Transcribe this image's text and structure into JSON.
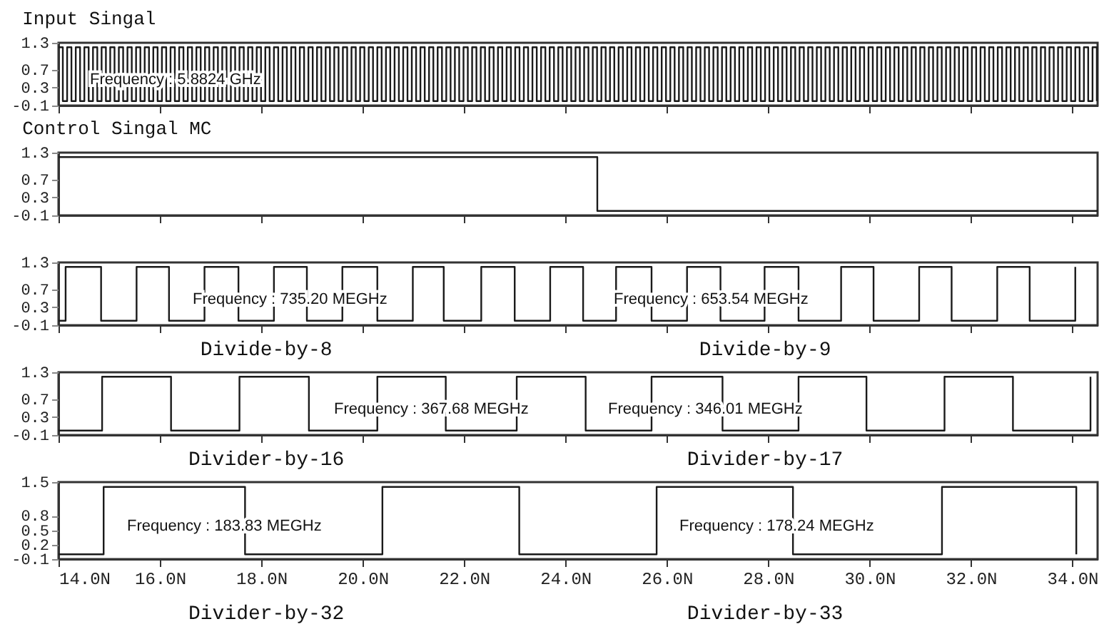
{
  "chart_data": [
    {
      "type": "step",
      "title": "Input Singal",
      "xlim": [
        14,
        34.5
      ],
      "xticks": [
        14,
        16,
        18,
        20,
        22,
        24,
        26,
        28,
        30,
        32,
        34
      ],
      "ylim": [
        -0.1,
        1.3
      ],
      "yticks": [
        -0.1,
        0.3,
        0.7,
        1.3
      ],
      "tick_labels": "y",
      "x": [
        14,
        14.085,
        14.17,
        14.255,
        14.34,
        14.425,
        14.51,
        14.595,
        14.68,
        14.765,
        14.85,
        14.935,
        15.02,
        15.105,
        15.19,
        15.275,
        15.36,
        15.445,
        15.53,
        15.615,
        15.7,
        15.785,
        15.87,
        15.955,
        16.04,
        16.125,
        16.21,
        16.295,
        16.38,
        16.465,
        16.55,
        16.635,
        16.72,
        16.805,
        16.89,
        16.975,
        17.06,
        17.145,
        17.23,
        17.315,
        17.4,
        17.485,
        17.57,
        17.655,
        17.74,
        17.825,
        17.91,
        17.995,
        18.08,
        18.165,
        18.25,
        18.335,
        18.42,
        18.505,
        18.59,
        18.675,
        18.76,
        18.845,
        18.93,
        19.015,
        19.1,
        19.185,
        19.27,
        19.355,
        19.44,
        19.525,
        19.61,
        19.695,
        19.78,
        19.865,
        19.95,
        20.035,
        20.12,
        20.205,
        20.29,
        20.375,
        20.46,
        20.545,
        20.63,
        20.715,
        20.8,
        20.885,
        20.97,
        21.055,
        21.14,
        21.225,
        21.31,
        21.395,
        21.48,
        21.565,
        21.65,
        21.735,
        21.82,
        21.905,
        21.99,
        22.075,
        22.16,
        22.245,
        22.33,
        22.415,
        22.5,
        22.585,
        22.67,
        22.755,
        22.84,
        22.925,
        23.01,
        23.095,
        23.18,
        23.265,
        23.35,
        23.435,
        23.52,
        23.605,
        23.69,
        23.775,
        23.86,
        23.945,
        24.03,
        24.115,
        24.2,
        24.285,
        24.37,
        24.455,
        24.54,
        24.625,
        24.71,
        24.795,
        24.88,
        24.965,
        25.05,
        25.135,
        25.22,
        25.305,
        25.39,
        25.475,
        25.56,
        25.645,
        25.73,
        25.815,
        25.9,
        25.985,
        26.07,
        26.155,
        26.24,
        26.325,
        26.41,
        26.495,
        26.58,
        26.665,
        26.75,
        26.835,
        26.92,
        27.005,
        27.09,
        27.175,
        27.26,
        27.345,
        27.43,
        27.515,
        27.6,
        27.685,
        27.77,
        27.855,
        27.94,
        28.025,
        28.11,
        28.195,
        28.28,
        28.365,
        28.45,
        28.535,
        28.62,
        28.705,
        28.79,
        28.875,
        28.96,
        29.045,
        29.13,
        29.215,
        29.3,
        29.385,
        29.47,
        29.555,
        29.64,
        29.725,
        29.81,
        29.895,
        29.98,
        30.065,
        30.15,
        30.235,
        30.32,
        30.405,
        30.49,
        30.575,
        30.66,
        30.745,
        30.83,
        30.915,
        31,
        31.085,
        31.17,
        31.255,
        31.34,
        31.425,
        31.51,
        31.595,
        31.68,
        31.765,
        31.85,
        31.935,
        32.02,
        32.105,
        32.19,
        32.275,
        32.36,
        32.445,
        32.53,
        32.615,
        32.7,
        32.785,
        32.87,
        32.955,
        33.04,
        33.125,
        33.21,
        33.295,
        33.38,
        33.465,
        33.55,
        33.635,
        33.72,
        33.805,
        33.89,
        33.975,
        34.06,
        34.145,
        34.23,
        34.315,
        34.4,
        34.485
      ],
      "series": [
        {
          "color": "#1a1a1a",
          "values": [
            1.2,
            0,
            1.2,
            0,
            1.2,
            0,
            1.2,
            0,
            1.2,
            0,
            1.2,
            0,
            1.2,
            0,
            1.2,
            0,
            1.2,
            0,
            1.2,
            0,
            1.2,
            0,
            1.2,
            0,
            1.2,
            0,
            1.2,
            0,
            1.2,
            0,
            1.2,
            0,
            1.2,
            0,
            1.2,
            0,
            1.2,
            0,
            1.2,
            0,
            1.2,
            0,
            1.2,
            0,
            1.2,
            0,
            1.2,
            0,
            1.2,
            0,
            1.2,
            0,
            1.2,
            0,
            1.2,
            0,
            1.2,
            0,
            1.2,
            0,
            1.2,
            0,
            1.2,
            0,
            1.2,
            0,
            1.2,
            0,
            1.2,
            0,
            1.2,
            0,
            1.2,
            0,
            1.2,
            0,
            1.2,
            0,
            1.2,
            0,
            1.2,
            0,
            1.2,
            0,
            1.2,
            0,
            1.2,
            0,
            1.2,
            0,
            1.2,
            0,
            1.2,
            0,
            1.2,
            0,
            1.2,
            0,
            1.2,
            0,
            1.2,
            0,
            1.2,
            0,
            1.2,
            0,
            1.2,
            0,
            1.2,
            0,
            1.2,
            0,
            1.2,
            0,
            1.2,
            0,
            1.2,
            0,
            1.2,
            0,
            1.2,
            0,
            1.2,
            0,
            1.2,
            0,
            1.2,
            0,
            1.2,
            0,
            1.2,
            0,
            1.2,
            0,
            1.2,
            0,
            1.2,
            0,
            1.2,
            0,
            1.2,
            0,
            1.2,
            0,
            1.2,
            0,
            1.2,
            0,
            1.2,
            0,
            1.2,
            0,
            1.2,
            0,
            1.2,
            0,
            1.2,
            0,
            1.2,
            0,
            1.2,
            0,
            1.2,
            0,
            1.2,
            0,
            1.2,
            0,
            1.2,
            0,
            1.2,
            0,
            1.2,
            0,
            1.2,
            0,
            1.2,
            0,
            1.2,
            0,
            1.2,
            0,
            1.2,
            0,
            1.2,
            0,
            1.2,
            0,
            1.2,
            0,
            1.2,
            0,
            1.2,
            0,
            1.2,
            0,
            1.2,
            0,
            1.2,
            0,
            1.2,
            0,
            1.2,
            0,
            1.2,
            0,
            1.2,
            0,
            1.2,
            0,
            1.2,
            0,
            1.2,
            0,
            1.2,
            0,
            1.2,
            0,
            1.2,
            0,
            1.2,
            0,
            1.2,
            0,
            1.2,
            0,
            1.2,
            0,
            1.2,
            0,
            1.2,
            0,
            1.2,
            0,
            1.2,
            0,
            1.2,
            0,
            1.2,
            0,
            1.2,
            0
          ]
        }
      ],
      "annotations": [
        "Frequency : 5.8824 GHz"
      ]
    },
    {
      "type": "step",
      "title": "Control Singal MC",
      "xlim": [
        14,
        34.5
      ],
      "xticks": [
        14,
        16,
        18,
        20,
        22,
        24,
        26,
        28,
        30,
        32,
        34
      ],
      "ylim": [
        -0.1,
        1.3
      ],
      "yticks": [
        -0.1,
        0.3,
        0.7,
        1.3
      ],
      "tick_labels": "y",
      "x": [
        14,
        24.63,
        34.5
      ],
      "series": [
        {
          "color": "#1a1a1a",
          "values": [
            1.2,
            0,
            0
          ]
        }
      ]
    },
    {
      "type": "step",
      "xlim": [
        14,
        34.5
      ],
      "xticks": [
        14,
        16,
        18,
        20,
        22,
        24,
        26,
        28,
        30,
        32,
        34
      ],
      "ylim": [
        -0.1,
        1.3
      ],
      "yticks": [
        -0.1,
        0.3,
        0.7,
        1.3
      ],
      "tick_labels": "y",
      "x": [
        14,
        14.14,
        14.84,
        15.54,
        16.18,
        16.88,
        17.55,
        18.25,
        18.9,
        19.6,
        20.29,
        20.99,
        21.6,
        22.34,
        23,
        23.7,
        24.35,
        25,
        25.7,
        26.4,
        27.06,
        27.93,
        28.6,
        29.44,
        30.08,
        30.98,
        31.62,
        32.52,
        33.16,
        34.06
      ],
      "series": [
        {
          "color": "#1a1a1a",
          "values": [
            0,
            1.2,
            0,
            1.2,
            0,
            1.2,
            0,
            1.2,
            0,
            1.2,
            0,
            1.2,
            0,
            1.2,
            0,
            1.2,
            0,
            1.2,
            0,
            1.2,
            0,
            1.2,
            0,
            1.2,
            0,
            1.2,
            0,
            1.2,
            0,
            1.2
          ]
        }
      ],
      "annotations": [
        "Frequency : 735.20 MEGHz",
        "Frequency : 653.54 MEGHz",
        "Divide-by-8",
        "Divide-by-9"
      ]
    },
    {
      "type": "step",
      "xlim": [
        14,
        34.5
      ],
      "xticks": [
        14,
        16,
        18,
        20,
        22,
        24,
        26,
        28,
        30,
        32,
        34
      ],
      "ylim": [
        -0.1,
        1.3
      ],
      "yticks": [
        -0.1,
        0.3,
        0.7,
        1.3
      ],
      "tick_labels": "y",
      "x": [
        14,
        14.86,
        16.22,
        17.57,
        18.94,
        20.29,
        21.64,
        23.04,
        24.4,
        25.7,
        27.1,
        28.6,
        29.94,
        31.48,
        32.83,
        34.36
      ],
      "series": [
        {
          "color": "#1a1a1a",
          "values": [
            0,
            1.2,
            0,
            1.2,
            0,
            1.2,
            0,
            1.2,
            0,
            1.2,
            0,
            1.2,
            0,
            1.2,
            0,
            1.2
          ]
        }
      ],
      "annotations": [
        "Frequency : 367.68 MEGHz",
        "Frequency : 346.01 MEGHz",
        "Divider-by-16",
        "Divider-by-17"
      ]
    },
    {
      "type": "step",
      "xlim": [
        14,
        34.5
      ],
      "xticks": [
        {
          "value": 14,
          "label": "14.0N"
        },
        {
          "value": 16,
          "label": "16.0N"
        },
        {
          "value": 18,
          "label": "18.0N"
        },
        {
          "value": 20,
          "label": "20.0N"
        },
        {
          "value": 22,
          "label": "22.0N"
        },
        {
          "value": 24,
          "label": "24.0N"
        },
        {
          "value": 26,
          "label": "26.0N"
        },
        {
          "value": 28,
          "label": "28.0N"
        },
        {
          "value": 30,
          "label": "30.0N"
        },
        {
          "value": 32,
          "label": "32.0N"
        },
        {
          "value": 34,
          "label": "34.0N"
        }
      ],
      "ylim": [
        -0.1,
        1.5
      ],
      "yticks": [
        -0.1,
        0.2,
        0.5,
        0.8,
        1.5
      ],
      "x": [
        14,
        14.89,
        17.68,
        20.39,
        23.09,
        25.8,
        28.49,
        31.43,
        34.08
      ],
      "series": [
        {
          "color": "#1a1a1a",
          "values": [
            0,
            1.4,
            0,
            1.4,
            0,
            1.4,
            0,
            1.4,
            0
          ]
        }
      ],
      "annotations": [
        "Frequency : 183.83 MEGHz",
        "Frequency : 178.24 MEGHz",
        "Divider-by-32",
        "Divider-by-33"
      ]
    }
  ]
}
